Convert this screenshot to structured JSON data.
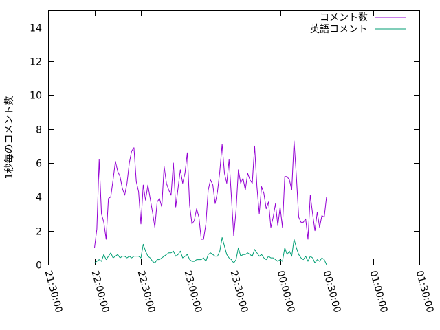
{
  "chart_data": {
    "type": "line",
    "title": "",
    "xlabel": "",
    "ylabel": "1秒毎のコメント数",
    "xlim": [
      "21:30:00",
      "01:30:00"
    ],
    "ylim": [
      0,
      15
    ],
    "x_ticks": [
      "21:30:00",
      "22:00:00",
      "22:30:00",
      "23:00:00",
      "23:30:00",
      "00:00:00",
      "00:30:00",
      "01:00:00",
      "01:30:00"
    ],
    "y_ticks": [
      0,
      2,
      4,
      6,
      8,
      10,
      12,
      14
    ],
    "legend_position": "top-right",
    "grid": false,
    "x_interval_seconds": 90,
    "series": [
      {
        "name": "コメント数",
        "color": "#9400d3",
        "start": "22:00:00",
        "values": [
          1.0,
          2.1,
          6.2,
          3.0,
          2.5,
          1.5,
          3.9,
          4.0,
          5.0,
          6.1,
          5.5,
          5.2,
          4.5,
          4.1,
          4.8,
          6.0,
          6.7,
          6.9,
          4.9,
          4.3,
          2.4,
          4.7,
          3.8,
          4.7,
          3.9,
          3.1,
          2.2,
          3.7,
          3.9,
          3.4,
          5.8,
          4.8,
          4.4,
          4.1,
          6.0,
          3.4,
          4.5,
          5.6,
          4.8,
          5.4,
          6.6,
          3.5,
          2.4,
          2.6,
          3.3,
          2.8,
          1.5,
          1.5,
          2.4,
          4.4,
          5.0,
          4.7,
          3.6,
          4.3,
          5.5,
          7.1,
          5.4,
          4.8,
          6.2,
          4.0,
          1.7,
          3.2,
          5.6,
          4.8,
          5.1,
          4.4,
          5.4,
          5.0,
          4.8,
          7.0,
          4.6,
          3.0,
          4.6,
          4.2,
          3.3,
          3.7,
          2.2,
          2.8,
          3.6,
          2.3,
          3.4,
          2.2,
          5.2,
          5.2,
          5.0,
          4.4,
          7.3,
          5.2,
          2.8,
          2.5,
          2.5,
          2.7,
          1.5,
          4.1,
          3.0,
          2.0,
          3.1,
          2.2,
          2.9,
          2.8,
          4.0
        ]
      },
      {
        "name": "英語コメント",
        "color": "#009e73",
        "start": "22:00:00",
        "values": [
          0.1,
          0.2,
          0.3,
          0.2,
          0.6,
          0.3,
          0.5,
          0.7,
          0.4,
          0.5,
          0.6,
          0.4,
          0.5,
          0.5,
          0.4,
          0.5,
          0.4,
          0.5,
          0.5,
          0.5,
          0.4,
          1.2,
          0.8,
          0.5,
          0.4,
          0.2,
          0.1,
          0.3,
          0.3,
          0.4,
          0.5,
          0.6,
          0.7,
          0.7,
          0.8,
          0.5,
          0.6,
          0.8,
          0.4,
          0.5,
          0.6,
          0.3,
          0.2,
          0.2,
          0.3,
          0.3,
          0.3,
          0.4,
          0.2,
          0.6,
          0.7,
          0.6,
          0.5,
          0.5,
          0.8,
          1.6,
          1.1,
          0.6,
          0.4,
          0.3,
          0.1,
          0.3,
          1.0,
          0.5,
          0.6,
          0.6,
          0.7,
          0.6,
          0.5,
          0.9,
          0.7,
          0.5,
          0.6,
          0.4,
          0.3,
          0.5,
          0.4,
          0.4,
          0.3,
          0.2,
          0.3,
          0.2,
          1.0,
          0.6,
          0.8,
          0.5,
          1.5,
          1.0,
          0.6,
          0.4,
          0.3,
          0.5,
          0.2,
          0.5,
          0.4,
          0.1,
          0.3,
          0.2,
          0.4,
          0.3,
          0.0
        ]
      }
    ]
  }
}
